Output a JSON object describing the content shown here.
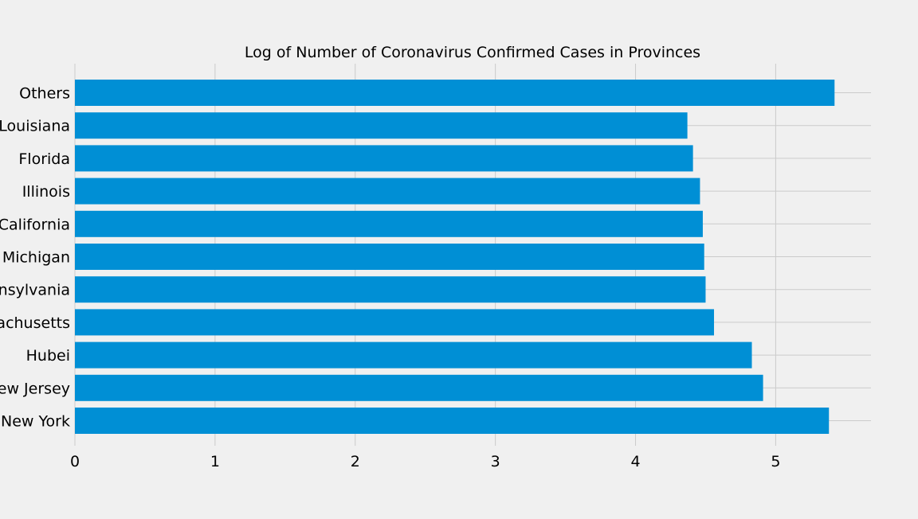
{
  "chart_data": {
    "type": "bar",
    "orientation": "horizontal",
    "title": "Log of Number of Coronavirus Confirmed Cases in Provinces",
    "xlabel": "",
    "ylabel": "",
    "categories": [
      "New York",
      "New Jersey",
      "Hubei",
      "Massachusetts",
      "Pennsylvania",
      "Michigan",
      "California",
      "Illinois",
      "Florida",
      "Louisiana",
      "Others"
    ],
    "values": [
      5.38,
      4.91,
      4.83,
      4.56,
      4.5,
      4.49,
      4.48,
      4.46,
      4.41,
      4.37,
      5.42
    ],
    "xlim": [
      0,
      5.68
    ],
    "xticks": [
      "0",
      "1",
      "2",
      "3",
      "4",
      "5"
    ],
    "grid": true,
    "bar_color": "#008fd5",
    "background_color": "#f0f0f0",
    "grid_color": "#cbcbcb"
  }
}
